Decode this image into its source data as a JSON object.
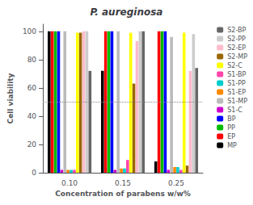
{
  "chart_data": {
    "type": "bar",
    "title": "P. aureginosa",
    "xlabel": "Concentration of parabens w/w%",
    "ylabel": "Cell viability",
    "categories": [
      "0.10",
      "0.15",
      "0.25"
    ],
    "series": [
      {
        "name": "MP",
        "color": "#000000",
        "values": [
          100,
          72,
          8
        ]
      },
      {
        "name": "EP",
        "color": "#ff0000",
        "values": [
          100,
          100,
          100
        ]
      },
      {
        "name": "PP",
        "color": "#00bb00",
        "values": [
          100,
          100,
          100
        ]
      },
      {
        "name": "BP",
        "color": "#0000ff",
        "values": [
          100,
          100,
          100
        ]
      },
      {
        "name": "S1-C",
        "color": "#cc00cc",
        "values": [
          2,
          2,
          2
        ]
      },
      {
        "name": "S1-MP",
        "color": "#bbbbbb",
        "values": [
          100,
          100,
          96
        ]
      },
      {
        "name": "S1-EP",
        "color": "#ff8800",
        "values": [
          2,
          3,
          4
        ]
      },
      {
        "name": "S1-PP",
        "color": "#00cccc",
        "values": [
          2,
          3,
          4
        ]
      },
      {
        "name": "S1-BP",
        "color": "#ff44aa",
        "values": [
          2,
          9,
          2
        ]
      },
      {
        "name": "S2-C",
        "color": "#ffff00",
        "values": [
          99,
          99,
          99
        ]
      },
      {
        "name": "S2-MP",
        "color": "#996600",
        "values": [
          99,
          63,
          5
        ]
      },
      {
        "name": "S2-EP",
        "color": "#ffbbcc",
        "values": [
          100,
          93,
          72
        ]
      },
      {
        "name": "S2-PP",
        "color": "#cccccc",
        "values": [
          100,
          100,
          98
        ]
      },
      {
        "name": "S2-BP",
        "color": "#666666",
        "values": [
          72,
          100,
          74
        ]
      }
    ],
    "ylim": [
      0,
      105
    ],
    "yticks": [
      0,
      20,
      40,
      60,
      80,
      100
    ],
    "hline": 50,
    "grid": false,
    "legend": "right"
  }
}
